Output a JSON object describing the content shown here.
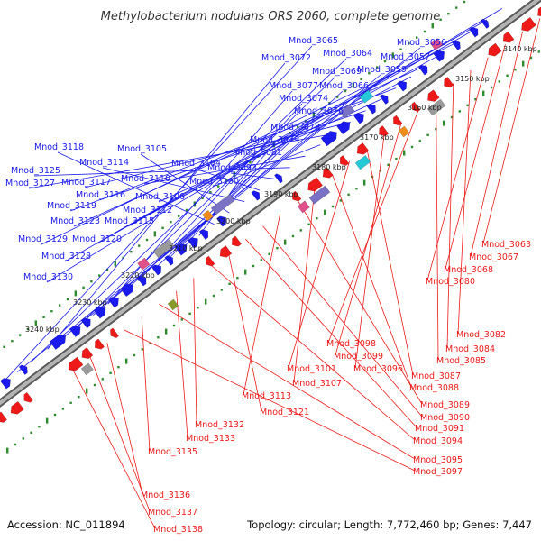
{
  "title": "Methylobacterium nodulans ORS 2060, complete genome",
  "footer": {
    "accession": "Accession: NC_011894",
    "summary": "Topology: circular; Length: 7,772,460 bp; Genes: 7,447"
  },
  "colors": {
    "forward": "#1a1aee",
    "reverse": "#ee1a1a",
    "backbone": "#8a8a8a",
    "tick": "#2e8b2e",
    "pseudo_pink": "#e0508a",
    "rna_orange": "#f08c1a",
    "gray": "#9a9a9a",
    "teal": "#24c8d6",
    "purple": "#7a72c4",
    "olive": "#8a9a2a"
  },
  "ticks": [
    {
      "label": "3140 kbp"
    },
    {
      "label": "3150 kbp"
    },
    {
      "label": "3160 kbp"
    },
    {
      "label": "3170 kbp"
    },
    {
      "label": "3180 kbp"
    },
    {
      "label": "3190 kbp"
    },
    {
      "label": "3200 kbp"
    },
    {
      "label": "3210 kbp"
    },
    {
      "label": "3220 kbp"
    },
    {
      "label": "3230 kbp"
    },
    {
      "label": "3240 kbp"
    }
  ],
  "forward_labels": [
    "Mnod_3065",
    "Mnod_3056",
    "Mnod_3064",
    "Mnod_3072",
    "Mnod_3057",
    "Mnod_3069",
    "Mnod_3059",
    "Mnod_3077",
    "Mnod_3066",
    "Mnod_3074",
    "Mnod_3076",
    "Mnod_3078",
    "Mnod_3079",
    "Mnod_3081",
    "Mnod_3118",
    "Mnod_3105",
    "Mnod_3114",
    "Mnod_3104",
    "Mnod_3093",
    "Mnod_3125",
    "Mnod_3110",
    "Mnod_3100",
    "Mnod_3127",
    "Mnod_3117",
    "Mnod_3116",
    "Mnod_3106",
    "Mnod_3119",
    "Mnod_3112",
    "Mnod_3123",
    "Mnod_3115",
    "Mnod_3129",
    "Mnod_3120",
    "Mnod_3128",
    "Mnod_3130"
  ],
  "reverse_labels": [
    "Mnod_3063",
    "Mnod_3067",
    "Mnod_3068",
    "Mnod_3080",
    "Mnod_3082",
    "Mnod_3084",
    "Mnod_3085",
    "Mnod_3098",
    "Mnod_3099",
    "Mnod_3096",
    "Mnod_3087",
    "Mnod_3101",
    "Mnod_3088",
    "Mnod_3107",
    "Mnod_3089",
    "Mnod_3113",
    "Mnod_3090",
    "Mnod_3091",
    "Mnod_3121",
    "Mnod_3094",
    "Mnod_3132",
    "Mnod_3133",
    "Mnod_3095",
    "Mnod_3135",
    "Mnod_3097",
    "Mnod_3136",
    "Mnod_3137",
    "Mnod_3138"
  ]
}
